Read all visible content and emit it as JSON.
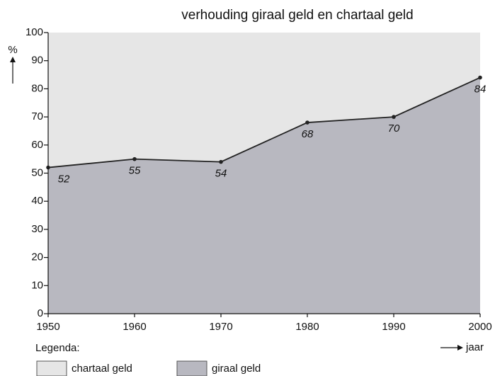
{
  "chart_data": {
    "type": "area",
    "stacked": true,
    "title": "verhouding giraal geld en chartaal geld",
    "y_label": "%",
    "x_label": "jaar",
    "legend_title": "Legenda:",
    "x": [
      1950,
      1960,
      1970,
      1980,
      1990,
      2000
    ],
    "series": [
      {
        "name": "giraal geld",
        "color": "#b8b8c0",
        "line_color": "#222222",
        "show_values": true,
        "values": [
          52,
          55,
          54,
          68,
          70,
          84
        ]
      },
      {
        "name": "chartaal geld",
        "color": "#e6e6e6",
        "show_values": false,
        "values": [
          48,
          45,
          46,
          32,
          30,
          16
        ]
      }
    ],
    "xlim": [
      1950,
      2000
    ],
    "xticks": [
      1950,
      1960,
      1970,
      1980,
      1990,
      2000
    ],
    "ylim": [
      0,
      100
    ],
    "yticks": [
      0,
      10,
      20,
      30,
      40,
      50,
      60,
      70,
      80,
      90,
      100
    ],
    "grid": false
  }
}
